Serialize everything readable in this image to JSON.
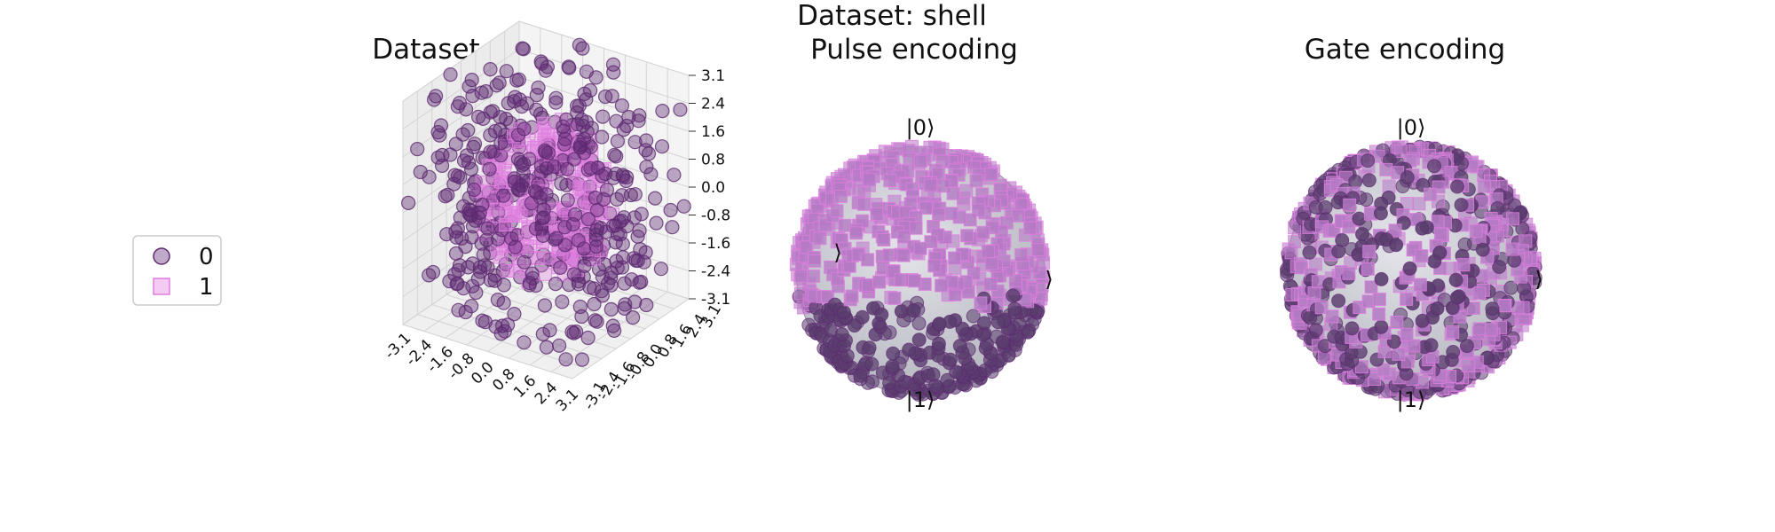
{
  "figure": {
    "suptitle": "Dataset: shell"
  },
  "legend": {
    "placement": "left",
    "entries": [
      {
        "label": "0",
        "marker": "circle",
        "color": "#5e2a72"
      },
      {
        "label": "1",
        "marker": "square",
        "color": "#e07ee0"
      }
    ]
  },
  "colors": {
    "class0": "#5e2a72",
    "class1": "#e07ee0",
    "pane": "#eeeeee",
    "sphere": "#c8c8d0"
  },
  "chart_data": [
    {
      "type": "scatter",
      "projection": "3d",
      "title": "Dataset",
      "x_ticks": [
        "-3.1",
        "-2.4",
        "-1.6",
        "-0.8",
        "0.0",
        "0.8",
        "1.6",
        "2.4",
        "3.1"
      ],
      "y_ticks": [
        "-3.1",
        "-2.4",
        "-1.6",
        "-0.8",
        "0.0",
        "0.8",
        "1.6",
        "2.4",
        "3.1"
      ],
      "z_ticks": [
        "3.1",
        "2.4",
        "1.6",
        "0.8",
        "0.0",
        "-0.8",
        "-1.6",
        "-2.4",
        "-3.1"
      ],
      "xlim": [
        -3.1,
        3.1
      ],
      "ylim": [
        -3.1,
        3.1
      ],
      "zlim": [
        -3.1,
        3.1
      ],
      "grid": true,
      "series": [
        {
          "name": "0",
          "description": "uniformly spread points filling the cube",
          "approx_count": 500
        },
        {
          "name": "1",
          "description": "points concentrated in a central shell",
          "approx_count": 250
        }
      ]
    },
    {
      "type": "scatter",
      "projection": "bloch-sphere",
      "title": "Pulse encoding",
      "labels": {
        "top": "|0⟩",
        "bottom": "|1⟩",
        "left": "⟩",
        "right": "⟩"
      },
      "series": [
        {
          "name": "0",
          "region": "lower hemisphere"
        },
        {
          "name": "1",
          "region": "upper hemisphere"
        }
      ]
    },
    {
      "type": "scatter",
      "projection": "bloch-sphere",
      "title": "Gate encoding",
      "labels": {
        "top": "|0⟩",
        "bottom": "|1⟩",
        "right": "⟩"
      },
      "series": [
        {
          "name": "0",
          "region": "whole sphere, mixed"
        },
        {
          "name": "1",
          "region": "whole sphere, mixed"
        }
      ]
    }
  ]
}
